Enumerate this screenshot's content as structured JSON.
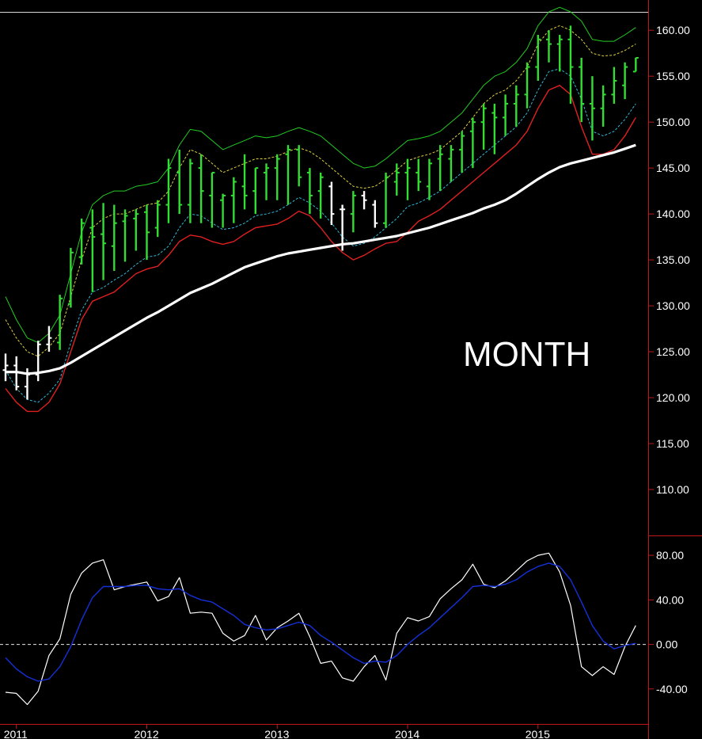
{
  "chart_data": [
    {
      "type": "bar",
      "style": "ohlc-bars-with-bands",
      "annotation": "MONTH",
      "ylim": [
        105,
        162
      ],
      "y_ticks": [
        {
          "value": 160,
          "label": "160.00"
        },
        {
          "value": 155,
          "label": "155.00"
        },
        {
          "value": 150,
          "label": "150.00"
        },
        {
          "value": 145,
          "label": "145.00"
        },
        {
          "value": 140,
          "label": "140.00"
        },
        {
          "value": 135,
          "label": "135.00"
        },
        {
          "value": 130,
          "label": "130.00"
        },
        {
          "value": 125,
          "label": "125.00"
        },
        {
          "value": 120,
          "label": "120.00"
        },
        {
          "value": 115,
          "label": "115.00"
        },
        {
          "value": 110,
          "label": "110.00"
        }
      ],
      "x_ticks": [
        {
          "index": 1,
          "label": "2011"
        },
        {
          "index": 13,
          "label": "2012"
        },
        {
          "index": 25,
          "label": "2013"
        },
        {
          "index": 37,
          "label": "2014"
        },
        {
          "index": 49,
          "label": "2015"
        }
      ],
      "colors": {
        "up_bar": "#33dd33",
        "other_bar": "#ffffff",
        "upper_band": "#22cc22",
        "upper_mid": "#e0d040",
        "lower_mid": "#30b8d8",
        "lower_band": "#e02020",
        "moving_average": "#ffffff"
      },
      "bars": [
        {
          "o": 123.0,
          "h": 124.8,
          "l": 121.8,
          "c": 123.5,
          "color": "white"
        },
        {
          "o": 123.5,
          "h": 124.5,
          "l": 120.8,
          "c": 121.2,
          "color": "white"
        },
        {
          "o": 121.2,
          "h": 123.2,
          "l": 119.8,
          "c": 122.5,
          "color": "white"
        },
        {
          "o": 122.5,
          "h": 126.2,
          "l": 121.8,
          "c": 125.8,
          "color": "white"
        },
        {
          "o": 125.8,
          "h": 127.8,
          "l": 125.0,
          "c": 126.5,
          "color": "white"
        },
        {
          "o": 126.0,
          "h": 131.2,
          "l": 125.2,
          "c": 130.8,
          "color": "green"
        },
        {
          "o": 130.2,
          "h": 136.3,
          "l": 129.8,
          "c": 135.8,
          "color": "green"
        },
        {
          "o": 135.3,
          "h": 139.5,
          "l": 134.5,
          "c": 139.0,
          "color": "green"
        },
        {
          "o": 138.5,
          "h": 140.5,
          "l": 131.5,
          "c": 137.5,
          "color": "green"
        },
        {
          "o": 137.8,
          "h": 141.2,
          "l": 132.8,
          "c": 136.8,
          "color": "green"
        },
        {
          "o": 136.5,
          "h": 141.0,
          "l": 133.8,
          "c": 139.0,
          "color": "green"
        },
        {
          "o": 139.2,
          "h": 140.5,
          "l": 134.8,
          "c": 139.8,
          "color": "green"
        },
        {
          "o": 139.5,
          "h": 140.5,
          "l": 136.0,
          "c": 140.0,
          "color": "green"
        },
        {
          "o": 140.2,
          "h": 141.0,
          "l": 135.0,
          "c": 138.0,
          "color": "green"
        },
        {
          "o": 138.5,
          "h": 141.5,
          "l": 137.5,
          "c": 141.0,
          "color": "green"
        },
        {
          "o": 141.0,
          "h": 146.0,
          "l": 139.0,
          "c": 145.0,
          "color": "green"
        },
        {
          "o": 144.5,
          "h": 147.0,
          "l": 140.0,
          "c": 141.0,
          "color": "green"
        },
        {
          "o": 141.0,
          "h": 146.0,
          "l": 139.0,
          "c": 145.5,
          "color": "green"
        },
        {
          "o": 145.0,
          "h": 146.5,
          "l": 139.0,
          "c": 142.5,
          "color": "green"
        },
        {
          "o": 142.0,
          "h": 144.5,
          "l": 138.5,
          "c": 144.5,
          "color": "green"
        },
        {
          "o": 141.5,
          "h": 142.2,
          "l": 138.5,
          "c": 142.0,
          "color": "green"
        },
        {
          "o": 142.0,
          "h": 144.0,
          "l": 139.0,
          "c": 143.5,
          "color": "green"
        },
        {
          "o": 143.0,
          "h": 146.5,
          "l": 140.5,
          "c": 142.0,
          "color": "green"
        },
        {
          "o": 142.5,
          "h": 145.0,
          "l": 140.0,
          "c": 145.0,
          "color": "green"
        },
        {
          "o": 144.5,
          "h": 145.5,
          "l": 141.5,
          "c": 145.0,
          "color": "green"
        },
        {
          "o": 145.0,
          "h": 146.5,
          "l": 141.5,
          "c": 146.0,
          "color": "green"
        },
        {
          "o": 146.5,
          "h": 147.5,
          "l": 141.0,
          "c": 147.0,
          "color": "green"
        },
        {
          "o": 147.0,
          "h": 147.5,
          "l": 143.0,
          "c": 144.0,
          "color": "green"
        },
        {
          "o": 144.5,
          "h": 145.0,
          "l": 140.0,
          "c": 142.0,
          "color": "green"
        },
        {
          "o": 142.5,
          "h": 144.5,
          "l": 139.5,
          "c": 144.0,
          "color": "green"
        },
        {
          "o": 143.0,
          "h": 143.5,
          "l": 138.8,
          "c": 140.0,
          "color": "white"
        },
        {
          "o": 140.5,
          "h": 141.0,
          "l": 136.0,
          "c": 140.5,
          "color": "white"
        },
        {
          "o": 140.0,
          "h": 142.5,
          "l": 138.0,
          "c": 142.0,
          "color": "green"
        },
        {
          "o": 142.0,
          "h": 142.5,
          "l": 140.5,
          "c": 141.5,
          "color": "white"
        },
        {
          "o": 141.0,
          "h": 141.5,
          "l": 138.5,
          "c": 139.0,
          "color": "white"
        },
        {
          "o": 139.0,
          "h": 144.5,
          "l": 138.5,
          "c": 144.0,
          "color": "green"
        },
        {
          "o": 143.5,
          "h": 145.5,
          "l": 142.0,
          "c": 144.5,
          "color": "green"
        },
        {
          "o": 144.5,
          "h": 146.0,
          "l": 141.5,
          "c": 145.0,
          "color": "green"
        },
        {
          "o": 144.5,
          "h": 146.0,
          "l": 142.5,
          "c": 143.5,
          "color": "green"
        },
        {
          "o": 143.0,
          "h": 146.0,
          "l": 141.5,
          "c": 145.5,
          "color": "green"
        },
        {
          "o": 146.0,
          "h": 147.5,
          "l": 142.5,
          "c": 146.5,
          "color": "green"
        },
        {
          "o": 146.0,
          "h": 147.5,
          "l": 143.5,
          "c": 147.0,
          "color": "green"
        },
        {
          "o": 147.0,
          "h": 149.0,
          "l": 144.5,
          "c": 148.5,
          "color": "green"
        },
        {
          "o": 149.0,
          "h": 150.5,
          "l": 145.0,
          "c": 150.0,
          "color": "green"
        },
        {
          "o": 150.0,
          "h": 152.0,
          "l": 147.0,
          "c": 151.5,
          "color": "green"
        },
        {
          "o": 151.0,
          "h": 152.0,
          "l": 146.5,
          "c": 150.5,
          "color": "green"
        },
        {
          "o": 150.5,
          "h": 153.0,
          "l": 148.5,
          "c": 152.0,
          "color": "green"
        },
        {
          "o": 152.0,
          "h": 154.0,
          "l": 149.5,
          "c": 153.0,
          "color": "green"
        },
        {
          "o": 153.0,
          "h": 156.5,
          "l": 151.5,
          "c": 156.0,
          "color": "green"
        },
        {
          "o": 156.0,
          "h": 159.5,
          "l": 154.5,
          "c": 159.0,
          "color": "green"
        },
        {
          "o": 159.0,
          "h": 160.0,
          "l": 156.5,
          "c": 158.5,
          "color": "green"
        },
        {
          "o": 158.5,
          "h": 159.5,
          "l": 155.5,
          "c": 159.0,
          "color": "green"
        },
        {
          "o": 159.0,
          "h": 160.5,
          "l": 152.0,
          "c": 156.0,
          "color": "green"
        },
        {
          "o": 156.0,
          "h": 157.0,
          "l": 150.0,
          "c": 152.0,
          "color": "green"
        },
        {
          "o": 152.0,
          "h": 155.0,
          "l": 148.0,
          "c": 151.5,
          "color": "green"
        },
        {
          "o": 151.5,
          "h": 154.0,
          "l": 149.5,
          "c": 153.0,
          "color": "green"
        },
        {
          "o": 153.0,
          "h": 156.0,
          "l": 152.0,
          "c": 154.5,
          "color": "green"
        },
        {
          "o": 154.0,
          "h": 156.5,
          "l": 152.5,
          "c": 156.0,
          "color": "green"
        },
        {
          "o": 155.5,
          "h": 157.0,
          "l": 155.5,
          "c": 157.0,
          "color": "green"
        }
      ],
      "series": [
        {
          "key": "upper_band",
          "values": [
            131.0,
            128.5,
            126.5,
            126.0,
            127.0,
            129.0,
            133.5,
            138.0,
            141.0,
            142.0,
            142.5,
            142.5,
            143.0,
            143.2,
            143.5,
            145.0,
            147.5,
            149.2,
            149.0,
            148.0,
            147.0,
            147.5,
            148.0,
            148.5,
            148.3,
            148.5,
            149.0,
            149.4,
            149.0,
            148.5,
            147.5,
            146.5,
            145.5,
            145.0,
            145.2,
            146.0,
            147.0,
            148.0,
            148.2,
            148.5,
            149.0,
            150.0,
            151.0,
            152.5,
            154.0,
            155.0,
            155.5,
            156.5,
            158.0,
            160.5,
            162.0,
            162.5,
            162.0,
            161.0,
            159.0,
            158.8,
            158.8,
            159.5,
            160.3
          ]
        },
        {
          "key": "upper_mid",
          "values": [
            128.5,
            126.5,
            125.0,
            124.5,
            125.5,
            127.0,
            131.0,
            135.0,
            138.5,
            139.5,
            140.0,
            140.0,
            140.5,
            141.0,
            141.2,
            142.5,
            145.0,
            147.0,
            146.5,
            145.5,
            144.5,
            145.0,
            145.5,
            146.0,
            146.0,
            146.3,
            146.8,
            147.2,
            146.8,
            146.0,
            145.0,
            144.0,
            143.0,
            142.8,
            143.0,
            143.8,
            144.8,
            145.8,
            146.2,
            146.5,
            147.0,
            148.0,
            149.0,
            150.5,
            152.0,
            153.0,
            153.5,
            154.5,
            156.0,
            158.5,
            160.0,
            160.5,
            160.0,
            159.0,
            157.5,
            157.2,
            157.3,
            157.8,
            158.5
          ]
        },
        {
          "key": "lower_mid",
          "values": [
            123.0,
            121.0,
            119.8,
            119.5,
            120.5,
            122.0,
            126.0,
            129.5,
            131.5,
            132.0,
            132.8,
            133.5,
            134.5,
            135.3,
            135.5,
            136.5,
            138.5,
            140.0,
            139.8,
            139.0,
            138.3,
            138.5,
            139.0,
            139.8,
            140.0,
            140.3,
            141.0,
            141.8,
            141.2,
            140.3,
            139.0,
            137.5,
            136.5,
            136.8,
            137.5,
            138.5,
            139.5,
            140.8,
            141.2,
            141.8,
            142.5,
            143.5,
            144.5,
            145.5,
            146.5,
            147.5,
            148.5,
            149.5,
            151.0,
            153.5,
            155.5,
            155.8,
            155.0,
            152.5,
            149.0,
            148.5,
            149.0,
            150.3,
            152.0
          ]
        },
        {
          "key": "lower_band",
          "values": [
            121.0,
            119.5,
            118.5,
            118.5,
            119.5,
            121.5,
            125.0,
            128.5,
            130.5,
            131.0,
            131.5,
            132.5,
            133.5,
            134.0,
            134.3,
            135.5,
            137.0,
            137.7,
            137.5,
            137.0,
            136.7,
            137.0,
            137.8,
            138.5,
            138.7,
            138.9,
            139.5,
            140.3,
            139.8,
            138.5,
            137.0,
            135.8,
            135.0,
            135.5,
            136.2,
            136.8,
            137.0,
            138.0,
            139.2,
            139.8,
            140.5,
            141.5,
            142.5,
            143.5,
            144.5,
            145.5,
            146.5,
            147.5,
            149.0,
            151.5,
            153.5,
            154.0,
            153.0,
            149.5,
            146.5,
            146.5,
            147.0,
            148.5,
            150.5
          ]
        },
        {
          "key": "moving_average",
          "values": [
            122.8,
            122.8,
            122.6,
            122.7,
            122.9,
            123.2,
            123.8,
            124.5,
            125.2,
            125.9,
            126.6,
            127.3,
            128.0,
            128.7,
            129.3,
            130.0,
            130.7,
            131.4,
            131.9,
            132.4,
            133.0,
            133.6,
            134.2,
            134.6,
            135.0,
            135.4,
            135.7,
            135.9,
            136.1,
            136.3,
            136.5,
            136.7,
            136.8,
            137.0,
            137.2,
            137.4,
            137.6,
            137.9,
            138.2,
            138.5,
            138.9,
            139.3,
            139.7,
            140.1,
            140.6,
            141.0,
            141.5,
            142.2,
            143.0,
            143.8,
            144.5,
            145.1,
            145.5,
            145.8,
            146.1,
            146.4,
            146.7,
            147.1,
            147.5
          ]
        }
      ]
    },
    {
      "type": "line",
      "ylim": [
        -70,
        95
      ],
      "y_ticks": [
        {
          "value": 80,
          "label": "80.00"
        },
        {
          "value": 40,
          "label": "40.00"
        },
        {
          "value": 0,
          "label": "0.00"
        },
        {
          "value": -40,
          "label": "-40.00"
        }
      ],
      "reference_line": 0,
      "series": [
        {
          "key": "oscillator",
          "color": "#ffffff",
          "values": [
            -43,
            -44,
            -54,
            -42,
            -10,
            5,
            45,
            64,
            73,
            76,
            49,
            52,
            54,
            56,
            39,
            43,
            60,
            28,
            29,
            28,
            10,
            3,
            8,
            26,
            4,
            15,
            21,
            28,
            7,
            -17,
            -15,
            -30,
            -33,
            -20,
            -10,
            -32,
            10,
            24,
            21,
            25,
            41,
            50,
            58,
            72,
            54,
            51,
            57,
            66,
            75,
            80,
            82,
            65,
            35,
            -20,
            -28,
            -20,
            -27,
            -2,
            17
          ]
        },
        {
          "key": "signal",
          "color": "#1530d8",
          "values": [
            -12,
            -22,
            -29,
            -33,
            -31,
            -20,
            -2,
            22,
            42,
            52,
            52,
            52,
            53,
            53,
            50,
            49,
            50,
            44,
            40,
            38,
            32,
            26,
            18,
            15,
            13,
            14,
            17,
            20,
            17,
            8,
            2,
            -5,
            -12,
            -17,
            -15,
            -16,
            -10,
            0,
            8,
            15,
            24,
            33,
            42,
            52,
            53,
            52,
            54,
            58,
            65,
            70,
            73,
            70,
            58,
            38,
            17,
            3,
            -4,
            -1,
            1
          ]
        }
      ]
    }
  ]
}
